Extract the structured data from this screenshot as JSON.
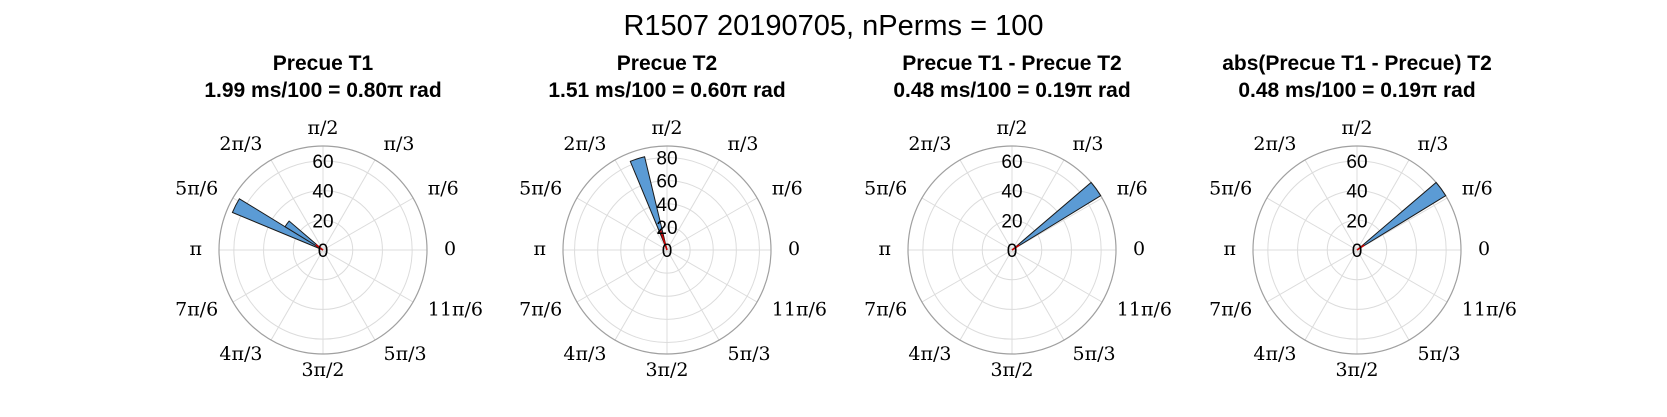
{
  "figure_title": "R1507 20190705, nPerms = 100",
  "colors": {
    "bar_fill": "#5b9bd5",
    "bar_edge": "#1a1a1a",
    "mean_vector": "#cc0000",
    "grid": "#dcdcdc",
    "outer_ring": "#a0a0a0"
  },
  "angle_labels": [
    "0",
    "π/6",
    "π/3",
    "π/2",
    "2π/3",
    "5π/6",
    "π",
    "7π/6",
    "4π/3",
    "3π/2",
    "5π/3",
    "11π/6"
  ],
  "chart_data": [
    {
      "type": "polar-histogram",
      "title": "Precue T1",
      "subtitle": "1.99 ms/100 = 0.80π rad",
      "rmax": 70,
      "rticks": [
        0,
        20,
        40,
        60
      ],
      "bin_width_rad": 0.157,
      "bins": [
        {
          "angle_pi": 0.85,
          "count": 66
        },
        {
          "angle_pi": 0.8,
          "count": 30
        }
      ],
      "mean_vector": {
        "angle_pi": 0.8,
        "length": 6
      }
    },
    {
      "type": "polar-histogram",
      "title": "Precue T2",
      "subtitle": "1.51 ms/100 = 0.60π rad",
      "rmax": 90,
      "rticks": [
        0,
        20,
        40,
        60,
        80
      ],
      "bin_width_rad": 0.157,
      "bins": [
        {
          "angle_pi": 0.6,
          "count": 83
        }
      ],
      "mean_vector": {
        "angle_pi": 0.6,
        "length": 18
      }
    },
    {
      "type": "polar-histogram",
      "title": "Precue T1 - Precue T2",
      "subtitle": "0.48 ms/100 = 0.19π rad",
      "rmax": 70,
      "rticks": [
        0,
        20,
        40,
        60
      ],
      "bin_width_rad": 0.157,
      "bins": [
        {
          "angle_pi": 0.2,
          "count": 70
        }
      ],
      "mean_vector": {
        "angle_pi": 0.19,
        "length": 6
      }
    },
    {
      "type": "polar-histogram",
      "title": "abs(Precue T1 - Precue) T2",
      "subtitle": "0.48 ms/100 = 0.19π rad",
      "rmax": 70,
      "rticks": [
        0,
        20,
        40,
        60
      ],
      "bin_width_rad": 0.157,
      "bins": [
        {
          "angle_pi": 0.2,
          "count": 70
        }
      ],
      "mean_vector": {
        "angle_pi": 0.19,
        "length": 6
      }
    }
  ]
}
